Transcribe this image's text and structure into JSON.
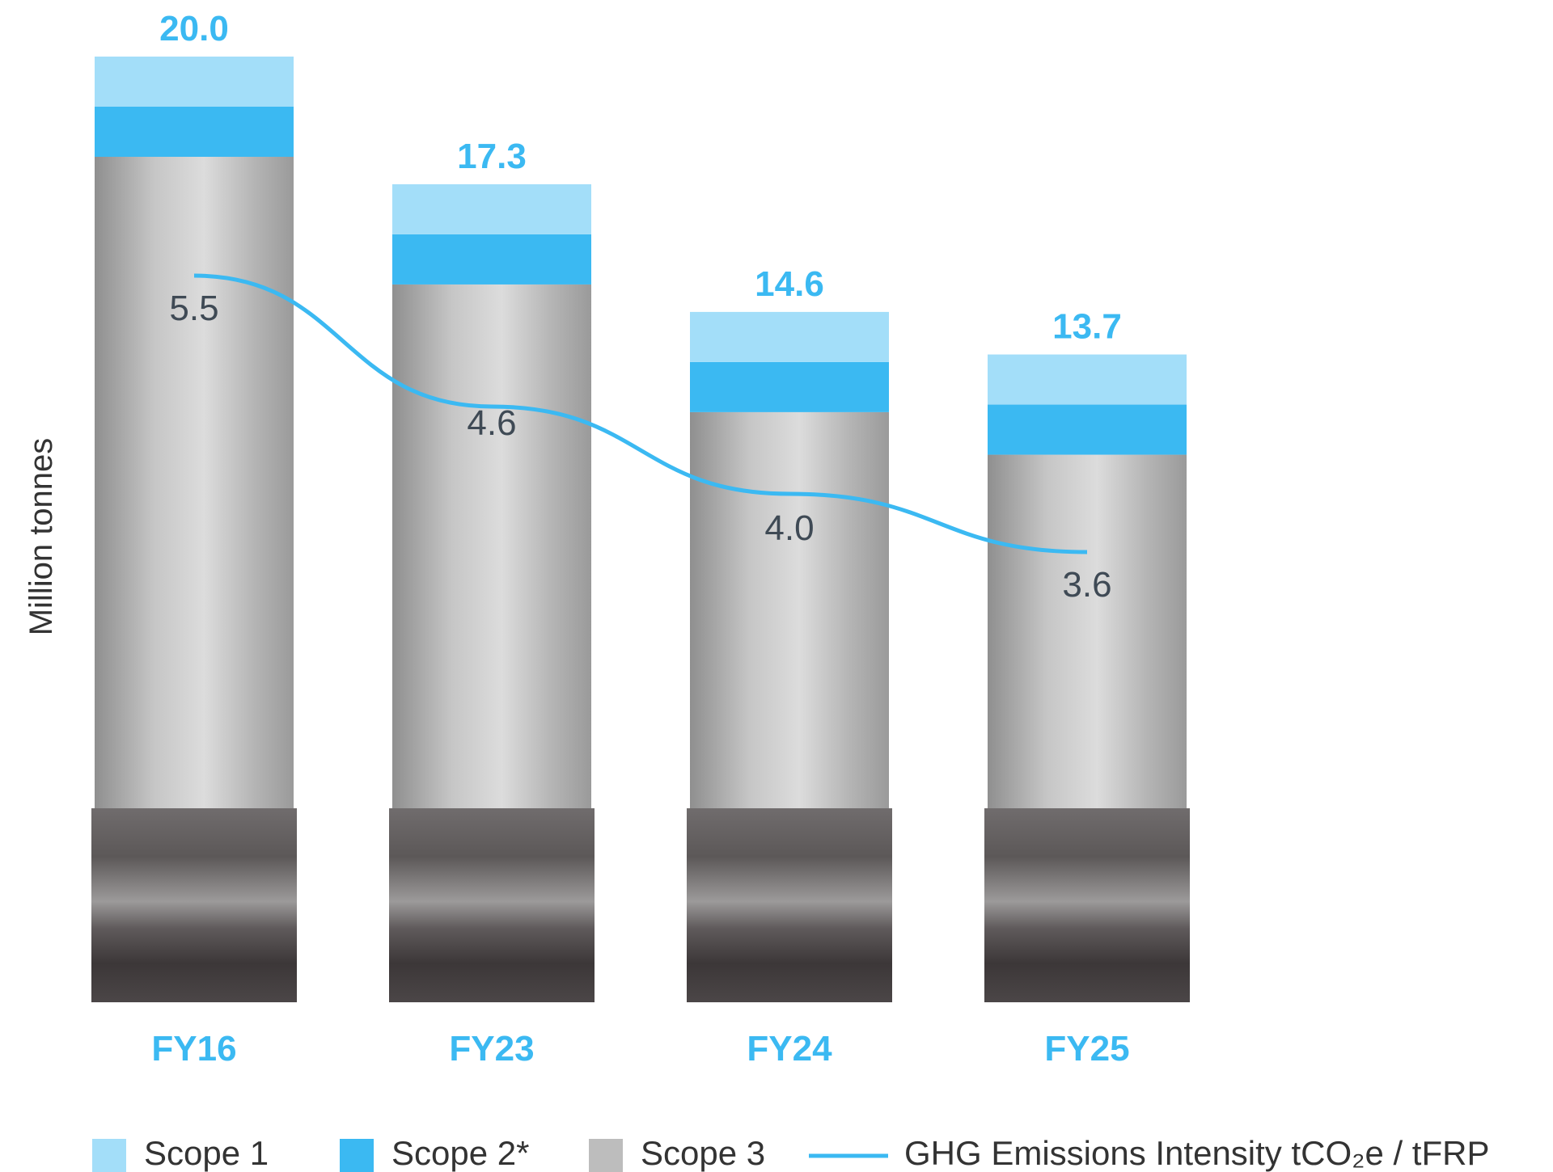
{
  "chart_data": {
    "type": "bar",
    "stacked": true,
    "categories": [
      "FY16",
      "FY23",
      "FY24",
      "FY25"
    ],
    "ylabel": "Million tonnes",
    "title": "",
    "totals": [
      20.0,
      17.3,
      14.6,
      13.7
    ],
    "totals_text": [
      "20.0",
      "17.3",
      "14.6",
      "13.7"
    ],
    "series": [
      {
        "name": "Scope 1",
        "values": [
          1.0,
          1.0,
          1.0,
          1.0
        ],
        "color": "#a3def9"
      },
      {
        "name": "Scope 2*",
        "values": [
          1.0,
          1.0,
          1.0,
          1.0
        ],
        "color": "#3bb9f2"
      },
      {
        "name": "Scope 3",
        "values": [
          18.0,
          15.3,
          12.6,
          11.7
        ],
        "color": "#bdbdbd"
      }
    ],
    "line_series": {
      "name": "GHG Emissions Intensity tCO₂e / tFRP",
      "values": [
        5.5,
        4.6,
        4.0,
        3.6
      ],
      "labels": [
        "5.5",
        "4.6",
        "4.0",
        "3.6"
      ],
      "color": "#3bb9f2"
    },
    "legend_position": "bottom",
    "grid": false
  },
  "colors": {
    "accent": "#3bb9f2",
    "accent_light": "#a3def9",
    "scope3": "#bdbdbd",
    "dark_base": "#4f4b4c",
    "label_dark": "#3f4a55",
    "axis_label": "#333333"
  },
  "legend": {
    "items": [
      {
        "label": "Scope 1",
        "kind": "swatch",
        "color": "#a3def9"
      },
      {
        "label": "Scope 2*",
        "kind": "swatch",
        "color": "#3bb9f2"
      },
      {
        "label": "Scope 3",
        "kind": "swatch",
        "color": "#bdbdbd"
      },
      {
        "label": "GHG Emissions Intensity tCO₂e / tFRP",
        "kind": "line",
        "color": "#3bb9f2"
      }
    ]
  }
}
